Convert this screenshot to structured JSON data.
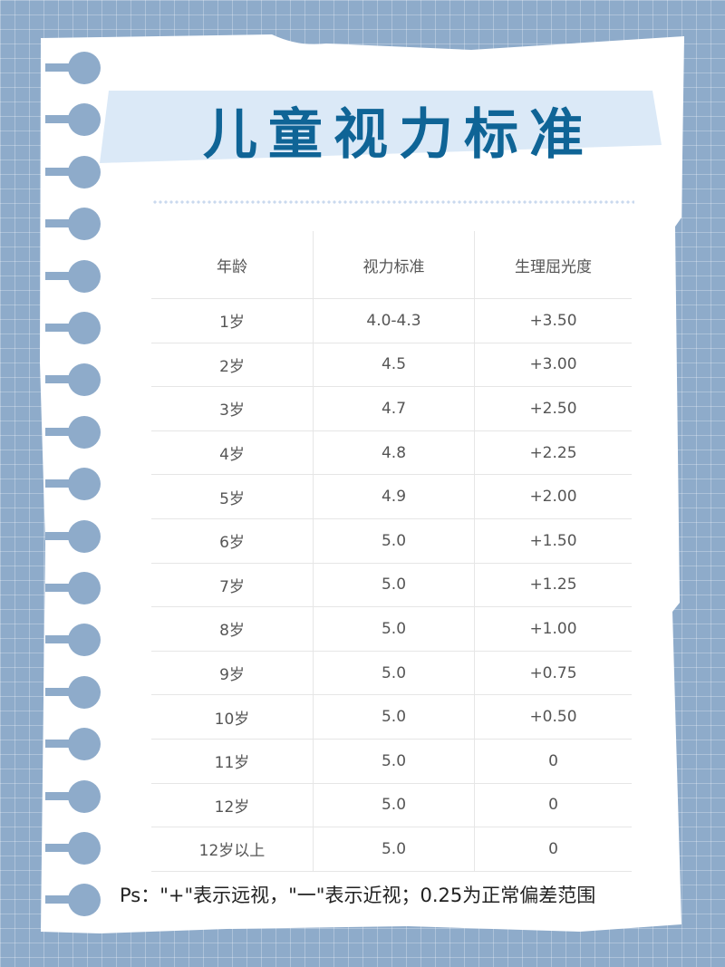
{
  "title": "儿童视力标准",
  "colors": {
    "title": "#0f6496",
    "background": "#8eabca",
    "ring": "#8eabca",
    "highlight": "#dbe9f7"
  },
  "table": {
    "headers": [
      "年龄",
      "视力标准",
      "生理屈光度"
    ],
    "rows": [
      [
        "1岁",
        "4.0-4.3",
        "+3.50"
      ],
      [
        "2岁",
        "4.5",
        "+3.00"
      ],
      [
        "3岁",
        "4.7",
        "+2.50"
      ],
      [
        "4岁",
        "4.8",
        "+2.25"
      ],
      [
        "5岁",
        "4.9",
        "+2.00"
      ],
      [
        "6岁",
        "5.0",
        "+1.50"
      ],
      [
        "7岁",
        "5.0",
        "+1.25"
      ],
      [
        "8岁",
        "5.0",
        "+1.00"
      ],
      [
        "9岁",
        "5.0",
        "+0.75"
      ],
      [
        "10岁",
        "5.0",
        "+0.50"
      ],
      [
        "11岁",
        "5.0",
        "0"
      ],
      [
        "12岁",
        "5.0",
        "0"
      ],
      [
        "12岁以上",
        "5.0",
        "0"
      ]
    ]
  },
  "note": "Ps：\"+\"表示远视，\"一\"表示近视；0.25为正常偏差范围"
}
